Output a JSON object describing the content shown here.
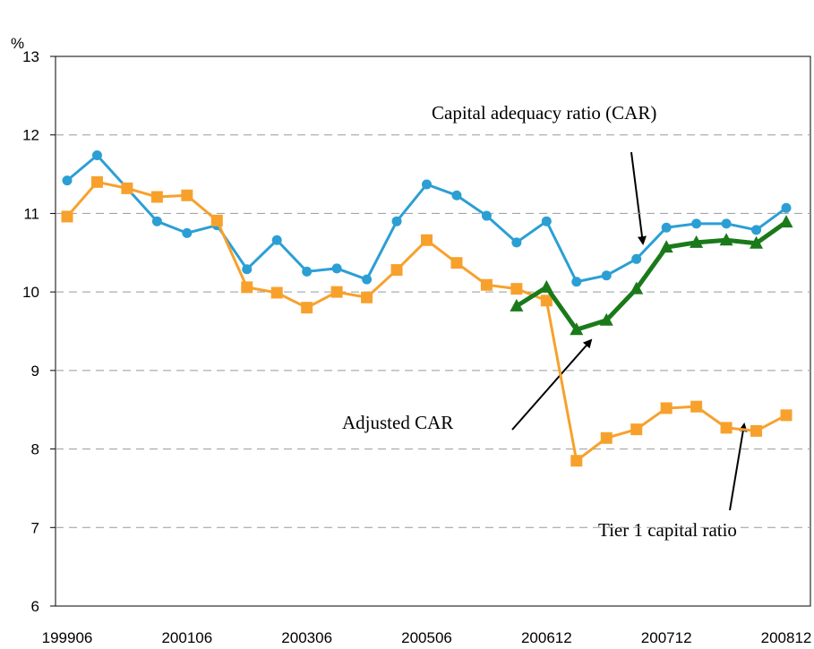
{
  "chart_data": {
    "type": "line",
    "y_unit": "%",
    "annotations": [
      "Capital adequacy ratio (CAR)",
      "Adjusted CAR",
      "Tier 1 capital ratio"
    ],
    "categories": [
      "199906",
      null,
      null,
      null,
      "200106",
      null,
      null,
      null,
      "200306",
      null,
      null,
      null,
      "200506",
      null,
      null,
      null,
      "200612",
      null,
      null,
      null,
      "200712",
      null,
      null,
      null,
      "200812"
    ],
    "series": [
      {
        "name": "Capital adequacy ratio (CAR)",
        "color": "#2b9fd4",
        "marker": "circle",
        "values": [
          11.42,
          11.74,
          11.32,
          10.9,
          10.75,
          10.85,
          10.29,
          10.66,
          10.26,
          10.3,
          10.16,
          10.9,
          11.37,
          11.23,
          10.97,
          10.63,
          10.9,
          10.13,
          10.21,
          10.42,
          10.82,
          10.87,
          10.87,
          10.79,
          11.07
        ]
      },
      {
        "name": "Tier 1 capital ratio",
        "color": "#f7a12c",
        "marker": "square",
        "values": [
          10.96,
          11.4,
          11.32,
          11.21,
          11.23,
          10.91,
          10.06,
          9.99,
          9.8,
          10.0,
          9.93,
          10.28,
          10.66,
          10.37,
          10.09,
          10.04,
          9.89,
          7.85,
          8.14,
          8.25,
          8.52,
          8.54,
          8.27,
          8.23,
          8.43
        ]
      },
      {
        "name": "Adjusted CAR",
        "color": "#1a7a1a",
        "marker": "triangle",
        "values": [
          null,
          null,
          null,
          null,
          null,
          null,
          null,
          null,
          null,
          null,
          null,
          null,
          null,
          null,
          null,
          9.82,
          10.06,
          9.52,
          9.64,
          10.04,
          10.57,
          10.63,
          10.66,
          10.62,
          10.89
        ]
      }
    ],
    "ylim": [
      6,
      13
    ],
    "yticks": [
      6,
      7,
      8,
      9,
      10,
      11,
      12,
      13
    ],
    "grid": true
  }
}
